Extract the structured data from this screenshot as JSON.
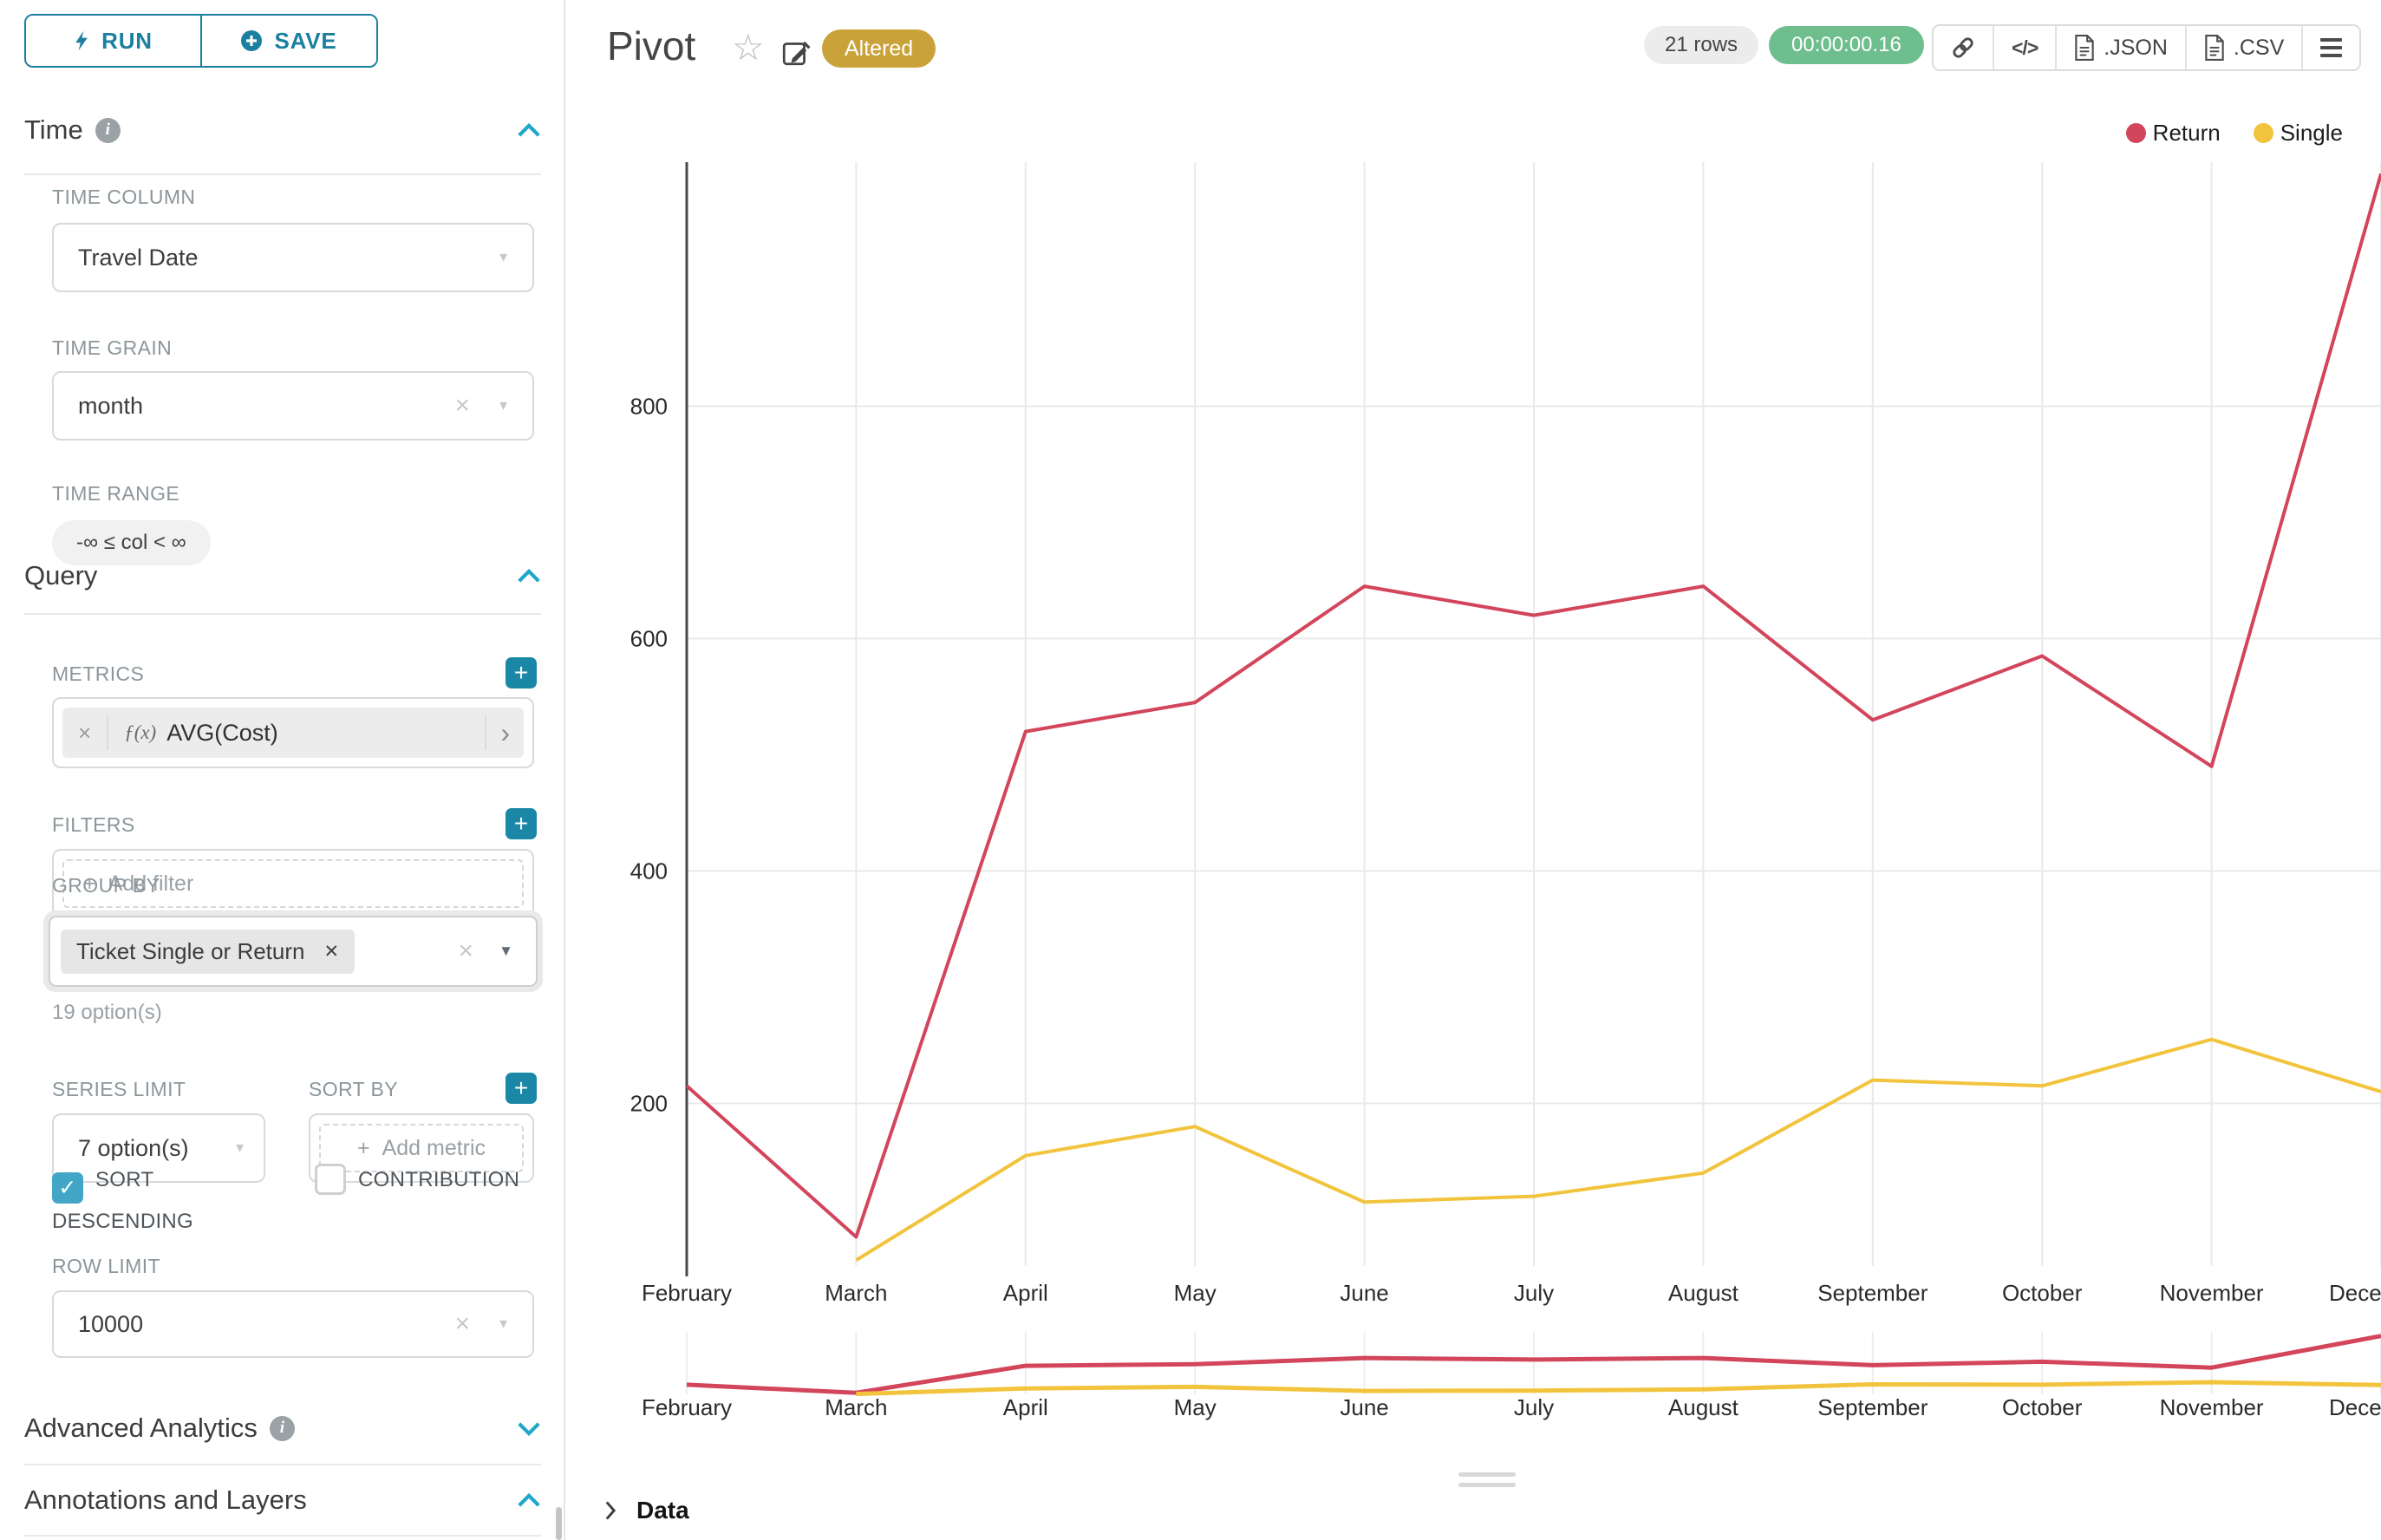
{
  "colors": {
    "accent": "#20a7c9",
    "button": "#1b7fa0",
    "plus_btn": "#1a87a6",
    "checkbox": "#42a7c7",
    "altered_bg": "#c9a23a",
    "timer_bg": "#6fbe8e",
    "rows_bg": "#ececec",
    "return_series": "#d3455b",
    "single_series": "#f2c43d"
  },
  "toolbar": {
    "run_label": "RUN",
    "save_label": "SAVE"
  },
  "sidebar": {
    "time": {
      "title": "Time",
      "time_column_label": "TIME COLUMN",
      "time_column_value": "Travel Date",
      "time_grain_label": "TIME GRAIN",
      "time_grain_value": "month",
      "time_range_label": "TIME RANGE",
      "time_range_value": "-∞ ≤ col < ∞"
    },
    "query": {
      "title": "Query",
      "metrics_label": "METRICS",
      "metric_fx": "ƒ(x)",
      "metric_value": "AVG(Cost)",
      "filters_label": "FILTERS",
      "add_filter_label": "Add filter",
      "group_by_label": "GROUP BY",
      "group_by_value": "Ticket Single or Return",
      "group_by_hint": "19 option(s)",
      "series_limit_label": "SERIES LIMIT",
      "series_limit_value": "7 option(s)",
      "sort_by_label": "SORT BY",
      "add_metric_label": "Add metric",
      "sort_descending_label": "SORT DESCENDING",
      "sort_descending_checked": true,
      "contribution_label": "CONTRIBUTION",
      "contribution_checked": false,
      "row_limit_label": "ROW LIMIT",
      "row_limit_value": "10000"
    },
    "advanced_analytics_title": "Advanced Analytics",
    "annotations_title": "Annotations and Layers"
  },
  "header": {
    "title": "Pivot",
    "altered_badge": "Altered",
    "row_count": "21 rows",
    "timer": "00:00:00.16",
    "json_label": ".JSON",
    "csv_label": ".CSV"
  },
  "glyphs": {
    "close": "×",
    "remove": "✕",
    "caret": "▼",
    "check": "✓",
    "chevron_right": "›",
    "code": "</>",
    "plus": "+",
    "star": "☆",
    "info": "i"
  },
  "chart_data": {
    "type": "line",
    "title": "Pivot",
    "x": [
      "February",
      "March",
      "April",
      "May",
      "June",
      "July",
      "August",
      "September",
      "October",
      "November",
      "December"
    ],
    "series": [
      {
        "name": "Return",
        "color": "#d3455b",
        "values": [
          215,
          85,
          520,
          545,
          645,
          620,
          645,
          530,
          585,
          490,
          1000
        ]
      },
      {
        "name": "Single",
        "color": "#f2c43d",
        "values": [
          null,
          65,
          155,
          180,
          115,
          120,
          140,
          220,
          215,
          255,
          210
        ]
      }
    ],
    "yticks": [
      200,
      400,
      600,
      800
    ],
    "ylim": [
      60,
      1010
    ],
    "xlabel": "",
    "ylabel": "",
    "grid": true,
    "legend_position": "top-right",
    "has_mini_preview": true
  },
  "data_panel": {
    "title": "Data"
  }
}
